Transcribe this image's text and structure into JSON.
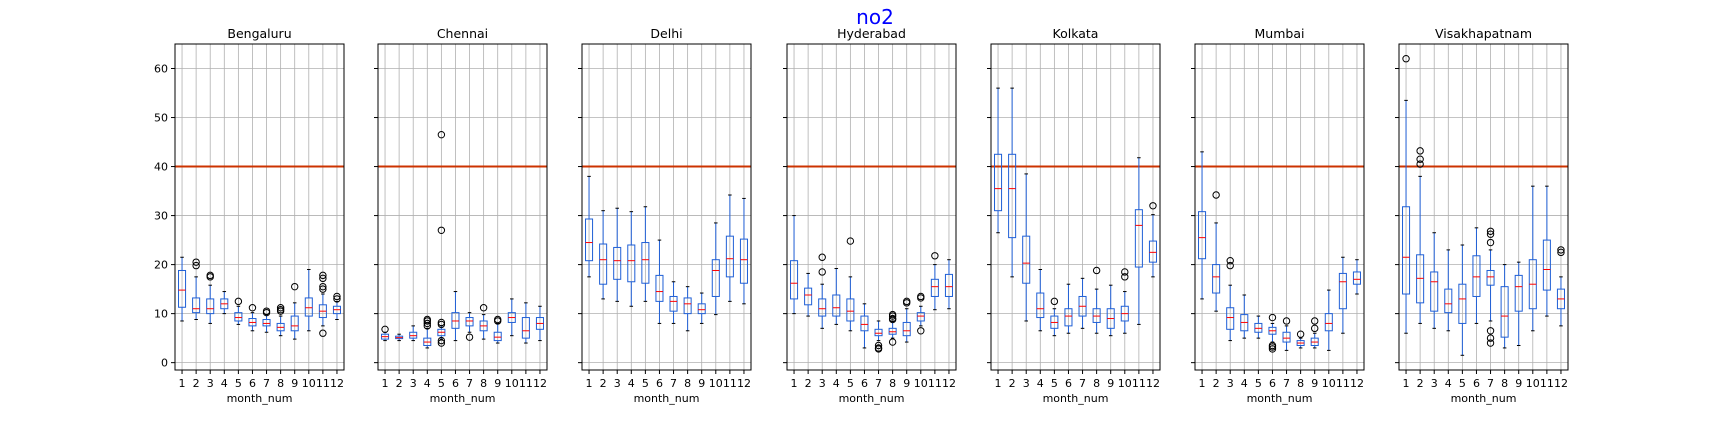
{
  "figure": {
    "title": "no2",
    "title_color": "#0000ff"
  },
  "chart_data": {
    "type": "box",
    "xlabel": "month_num",
    "x_ticks": [
      "1",
      "2",
      "3",
      "4",
      "5",
      "6",
      "7",
      "8",
      "9",
      "10",
      "11",
      "12"
    ],
    "y_ticks": [
      0,
      10,
      20,
      30,
      40,
      50,
      60
    ],
    "ylim": [
      -1.5,
      65
    ],
    "grid": true,
    "reference_line": {
      "y": 40,
      "color": "#cc3300"
    },
    "colors": {
      "box": "#1f5fd6",
      "median": "#ff0000",
      "whisker": "#1f5fd6",
      "flier": "#000000",
      "grid": "#b0b0b0"
    },
    "panels": [
      {
        "title": "Bengaluru",
        "boxes": [
          {
            "m": 1,
            "wl": 8.5,
            "q1": 11.3,
            "med": 14.8,
            "q3": 18.8,
            "wh": 21.5,
            "fl": []
          },
          {
            "m": 2,
            "wl": 8.8,
            "q1": 10.2,
            "med": 11.0,
            "q3": 13.2,
            "wh": 17.5,
            "fl": [
              20.5,
              19.8
            ]
          },
          {
            "m": 3,
            "wl": 8.0,
            "q1": 10.0,
            "med": 11.0,
            "q3": 13.0,
            "wh": 15.8,
            "fl": [
              17.8,
              17.5
            ]
          },
          {
            "m": 4,
            "wl": 10.0,
            "q1": 11.0,
            "med": 12.0,
            "q3": 13.0,
            "wh": 14.5,
            "fl": []
          },
          {
            "m": 5,
            "wl": 7.8,
            "q1": 8.5,
            "med": 9.2,
            "q3": 10.2,
            "wh": 11.5,
            "fl": [
              12.5
            ]
          },
          {
            "m": 6,
            "wl": 6.5,
            "q1": 7.5,
            "med": 8.2,
            "q3": 9.0,
            "wh": 10.2,
            "fl": [
              11.2
            ]
          },
          {
            "m": 7,
            "wl": 6.2,
            "q1": 7.5,
            "med": 8.0,
            "q3": 8.8,
            "wh": 9.8,
            "fl": [
              10.5,
              10.2
            ]
          },
          {
            "m": 8,
            "wl": 5.5,
            "q1": 6.5,
            "med": 7.2,
            "q3": 8.0,
            "wh": 9.5,
            "fl": [
              11.2,
              10.8,
              10.5
            ]
          },
          {
            "m": 9,
            "wl": 4.8,
            "q1": 6.5,
            "med": 7.5,
            "q3": 9.5,
            "wh": 12.2,
            "fl": [
              15.5
            ]
          },
          {
            "m": 10,
            "wl": 6.5,
            "q1": 9.5,
            "med": 11.2,
            "q3": 13.2,
            "wh": 19.0,
            "fl": []
          },
          {
            "m": 11,
            "wl": 7.5,
            "q1": 9.2,
            "med": 10.5,
            "q3": 11.8,
            "wh": 14.0,
            "fl": [
              17.8,
              17.2,
              15.5,
              15.0,
              6.0
            ]
          },
          {
            "m": 12,
            "wl": 8.8,
            "q1": 10.0,
            "med": 10.8,
            "q3": 11.5,
            "wh": 12.5,
            "fl": [
              13.5,
              13.0
            ]
          }
        ]
      },
      {
        "title": "Chennai",
        "boxes": [
          {
            "m": 1,
            "wl": 4.5,
            "q1": 4.8,
            "med": 5.3,
            "q3": 5.8,
            "wh": 6.2,
            "fl": [
              6.8
            ]
          },
          {
            "m": 2,
            "wl": 4.5,
            "q1": 4.9,
            "med": 5.1,
            "q3": 5.4,
            "wh": 5.8,
            "fl": []
          },
          {
            "m": 3,
            "wl": 4.5,
            "q1": 5.0,
            "med": 5.5,
            "q3": 6.2,
            "wh": 7.5,
            "fl": []
          },
          {
            "m": 4,
            "wl": 3.0,
            "q1": 3.5,
            "med": 4.2,
            "q3": 5.0,
            "wh": 7.0,
            "fl": [
              8.8,
              8.5,
              8.0,
              7.5
            ]
          },
          {
            "m": 5,
            "wl": 4.8,
            "q1": 5.5,
            "med": 6.2,
            "q3": 6.8,
            "wh": 7.5,
            "fl": [
              46.5,
              27.0,
              8.2,
              7.8,
              4.5,
              4.0
            ]
          },
          {
            "m": 6,
            "wl": 4.5,
            "q1": 7.0,
            "med": 8.5,
            "q3": 10.2,
            "wh": 14.5,
            "fl": []
          },
          {
            "m": 7,
            "wl": 6.2,
            "q1": 7.5,
            "med": 8.5,
            "q3": 9.2,
            "wh": 10.2,
            "fl": [
              5.2
            ]
          },
          {
            "m": 8,
            "wl": 4.8,
            "q1": 6.5,
            "med": 7.5,
            "q3": 8.5,
            "wh": 9.8,
            "fl": [
              11.2
            ]
          },
          {
            "m": 9,
            "wl": 4.0,
            "q1": 4.5,
            "med": 5.2,
            "q3": 6.2,
            "wh": 8.0,
            "fl": [
              8.8,
              8.5
            ]
          },
          {
            "m": 10,
            "wl": 5.5,
            "q1": 8.2,
            "med": 9.2,
            "q3": 10.2,
            "wh": 13.0,
            "fl": []
          },
          {
            "m": 11,
            "wl": 4.0,
            "q1": 5.0,
            "med": 6.5,
            "q3": 9.2,
            "wh": 12.2,
            "fl": []
          },
          {
            "m": 12,
            "wl": 4.5,
            "q1": 6.8,
            "med": 8.0,
            "q3": 9.2,
            "wh": 11.5,
            "fl": []
          }
        ]
      },
      {
        "title": "Delhi",
        "boxes": [
          {
            "m": 1,
            "wl": 17.5,
            "q1": 20.8,
            "med": 24.5,
            "q3": 29.3,
            "wh": 38.0,
            "fl": []
          },
          {
            "m": 2,
            "wl": 13.0,
            "q1": 16.0,
            "med": 21.0,
            "q3": 24.2,
            "wh": 31.0,
            "fl": []
          },
          {
            "m": 3,
            "wl": 12.5,
            "q1": 17.0,
            "med": 20.8,
            "q3": 23.5,
            "wh": 31.5,
            "fl": []
          },
          {
            "m": 4,
            "wl": 11.5,
            "q1": 16.5,
            "med": 20.8,
            "q3": 24.0,
            "wh": 30.8,
            "fl": []
          },
          {
            "m": 5,
            "wl": 12.5,
            "q1": 16.2,
            "med": 21.0,
            "q3": 24.5,
            "wh": 31.8,
            "fl": []
          },
          {
            "m": 6,
            "wl": 8.0,
            "q1": 12.5,
            "med": 14.5,
            "q3": 17.8,
            "wh": 25.0,
            "fl": []
          },
          {
            "m": 7,
            "wl": 8.0,
            "q1": 10.5,
            "med": 12.5,
            "q3": 13.5,
            "wh": 16.5,
            "fl": []
          },
          {
            "m": 8,
            "wl": 6.5,
            "q1": 10.0,
            "med": 12.0,
            "q3": 13.2,
            "wh": 15.5,
            "fl": []
          },
          {
            "m": 9,
            "wl": 8.0,
            "q1": 10.0,
            "med": 10.8,
            "q3": 12.0,
            "wh": 14.2,
            "fl": []
          },
          {
            "m": 10,
            "wl": 9.8,
            "q1": 13.5,
            "med": 18.8,
            "q3": 21.0,
            "wh": 28.5,
            "fl": []
          },
          {
            "m": 11,
            "wl": 12.5,
            "q1": 17.5,
            "med": 21.2,
            "q3": 25.8,
            "wh": 34.2,
            "fl": []
          },
          {
            "m": 12,
            "wl": 12.0,
            "q1": 16.2,
            "med": 21.0,
            "q3": 25.2,
            "wh": 33.5,
            "fl": []
          }
        ]
      },
      {
        "title": "Hyderabad",
        "boxes": [
          {
            "m": 1,
            "wl": 10.0,
            "q1": 13.0,
            "med": 16.2,
            "q3": 20.8,
            "wh": 30.0,
            "fl": []
          },
          {
            "m": 2,
            "wl": 9.5,
            "q1": 11.8,
            "med": 13.8,
            "q3": 15.2,
            "wh": 18.2,
            "fl": []
          },
          {
            "m": 3,
            "wl": 7.0,
            "q1": 9.5,
            "med": 11.0,
            "q3": 13.0,
            "wh": 16.0,
            "fl": [
              21.5,
              18.5
            ]
          },
          {
            "m": 4,
            "wl": 7.8,
            "q1": 9.5,
            "med": 11.2,
            "q3": 13.8,
            "wh": 19.2,
            "fl": []
          },
          {
            "m": 5,
            "wl": 6.5,
            "q1": 8.5,
            "med": 10.5,
            "q3": 13.0,
            "wh": 17.5,
            "fl": [
              24.8
            ]
          },
          {
            "m": 6,
            "wl": 3.0,
            "q1": 6.5,
            "med": 7.8,
            "q3": 9.5,
            "wh": 12.0,
            "fl": []
          },
          {
            "m": 7,
            "wl": 4.5,
            "q1": 5.5,
            "med": 6.0,
            "q3": 6.8,
            "wh": 8.5,
            "fl": [
              3.5,
              3.0,
              2.8
            ]
          },
          {
            "m": 8,
            "wl": 5.0,
            "q1": 5.8,
            "med": 6.3,
            "q3": 7.0,
            "wh": 8.5,
            "fl": [
              9.8,
              9.5,
              9.0,
              8.8,
              4.2
            ]
          },
          {
            "m": 9,
            "wl": 4.2,
            "q1": 5.5,
            "med": 6.5,
            "q3": 8.2,
            "wh": 11.0,
            "fl": [
              12.5,
              12.2
            ]
          },
          {
            "m": 10,
            "wl": 7.5,
            "q1": 8.5,
            "med": 9.5,
            "q3": 10.2,
            "wh": 11.5,
            "fl": [
              13.5,
              13.2,
              6.5
            ]
          },
          {
            "m": 11,
            "wl": 10.8,
            "q1": 13.5,
            "med": 15.5,
            "q3": 17.0,
            "wh": 20.0,
            "fl": [
              21.8
            ]
          },
          {
            "m": 12,
            "wl": 11.0,
            "q1": 13.5,
            "med": 15.5,
            "q3": 18.0,
            "wh": 21.0,
            "fl": []
          }
        ]
      },
      {
        "title": "Kolkata",
        "boxes": [
          {
            "m": 1,
            "wl": 26.5,
            "q1": 31.0,
            "med": 35.5,
            "q3": 42.5,
            "wh": 56.0,
            "fl": []
          },
          {
            "m": 2,
            "wl": 17.5,
            "q1": 25.5,
            "med": 35.5,
            "q3": 42.5,
            "wh": 56.0,
            "fl": []
          },
          {
            "m": 3,
            "wl": 8.5,
            "q1": 16.2,
            "med": 20.3,
            "q3": 25.8,
            "wh": 38.5,
            "fl": []
          },
          {
            "m": 4,
            "wl": 6.5,
            "q1": 9.2,
            "med": 11.0,
            "q3": 14.2,
            "wh": 19.0,
            "fl": []
          },
          {
            "m": 5,
            "wl": 5.5,
            "q1": 7.0,
            "med": 8.2,
            "q3": 9.5,
            "wh": 11.0,
            "fl": [
              12.5
            ]
          },
          {
            "m": 6,
            "wl": 6.0,
            "q1": 7.5,
            "med": 9.5,
            "q3": 11.0,
            "wh": 16.0,
            "fl": []
          },
          {
            "m": 7,
            "wl": 7.0,
            "q1": 9.5,
            "med": 11.5,
            "q3": 13.5,
            "wh": 17.2,
            "fl": []
          },
          {
            "m": 8,
            "wl": 6.0,
            "q1": 8.2,
            "med": 9.5,
            "q3": 11.0,
            "wh": 15.0,
            "fl": [
              18.8
            ]
          },
          {
            "m": 9,
            "wl": 5.5,
            "q1": 7.0,
            "med": 9.0,
            "q3": 11.0,
            "wh": 15.8,
            "fl": []
          },
          {
            "m": 10,
            "wl": 6.0,
            "q1": 8.5,
            "med": 10.0,
            "q3": 11.5,
            "wh": 14.5,
            "fl": [
              18.5,
              17.5
            ]
          },
          {
            "m": 11,
            "wl": 7.8,
            "q1": 19.5,
            "med": 28.0,
            "q3": 31.2,
            "wh": 41.8,
            "fl": []
          },
          {
            "m": 12,
            "wl": 17.5,
            "q1": 20.5,
            "med": 22.5,
            "q3": 24.8,
            "wh": 30.2,
            "fl": [
              32.0
            ]
          }
        ]
      },
      {
        "title": "Mumbai",
        "boxes": [
          {
            "m": 1,
            "wl": 13.0,
            "q1": 21.2,
            "med": 25.5,
            "q3": 30.8,
            "wh": 43.0,
            "fl": []
          },
          {
            "m": 2,
            "wl": 10.5,
            "q1": 14.2,
            "med": 17.5,
            "q3": 20.0,
            "wh": 28.5,
            "fl": [
              34.2
            ]
          },
          {
            "m": 3,
            "wl": 4.5,
            "q1": 6.8,
            "med": 9.2,
            "q3": 11.2,
            "wh": 15.8,
            "fl": [
              20.8,
              19.8
            ]
          },
          {
            "m": 4,
            "wl": 5.0,
            "q1": 6.5,
            "med": 8.2,
            "q3": 9.8,
            "wh": 13.8,
            "fl": []
          },
          {
            "m": 5,
            "wl": 5.0,
            "q1": 6.2,
            "med": 7.0,
            "q3": 8.0,
            "wh": 9.5,
            "fl": []
          },
          {
            "m": 6,
            "wl": 4.2,
            "q1": 5.8,
            "med": 6.5,
            "q3": 7.2,
            "wh": 8.0,
            "fl": [
              9.2,
              3.5,
              3.2,
              2.8
            ]
          },
          {
            "m": 7,
            "wl": 2.5,
            "q1": 4.2,
            "med": 5.0,
            "q3": 6.2,
            "wh": 7.5,
            "fl": [
              8.5
            ]
          },
          {
            "m": 8,
            "wl": 3.0,
            "q1": 3.5,
            "med": 4.0,
            "q3": 4.5,
            "wh": 5.0,
            "fl": [
              5.8
            ]
          },
          {
            "m": 9,
            "wl": 3.0,
            "q1": 3.5,
            "med": 4.2,
            "q3": 5.0,
            "wh": 6.0,
            "fl": [
              8.5,
              7.0
            ]
          },
          {
            "m": 10,
            "wl": 2.5,
            "q1": 6.5,
            "med": 8.0,
            "q3": 10.0,
            "wh": 14.8,
            "fl": []
          },
          {
            "m": 11,
            "wl": 6.0,
            "q1": 11.0,
            "med": 16.5,
            "q3": 18.2,
            "wh": 21.5,
            "fl": []
          },
          {
            "m": 12,
            "wl": 14.0,
            "q1": 16.0,
            "med": 17.0,
            "q3": 18.5,
            "wh": 21.0,
            "fl": []
          }
        ]
      },
      {
        "title": "Visakhapatnam",
        "boxes": [
          {
            "m": 1,
            "wl": 6.0,
            "q1": 14.0,
            "med": 21.5,
            "q3": 31.8,
            "wh": 53.5,
            "fl": [
              62.0
            ]
          },
          {
            "m": 2,
            "wl": 8.0,
            "q1": 12.2,
            "med": 17.2,
            "q3": 22.0,
            "wh": 38.0,
            "fl": [
              43.2,
              41.5,
              40.5
            ]
          },
          {
            "m": 3,
            "wl": 7.0,
            "q1": 10.5,
            "med": 16.5,
            "q3": 18.5,
            "wh": 26.5,
            "fl": []
          },
          {
            "m": 4,
            "wl": 6.5,
            "q1": 10.2,
            "med": 12.0,
            "q3": 15.0,
            "wh": 23.0,
            "fl": []
          },
          {
            "m": 5,
            "wl": 1.5,
            "q1": 8.0,
            "med": 13.0,
            "q3": 16.0,
            "wh": 24.0,
            "fl": []
          },
          {
            "m": 6,
            "wl": 8.0,
            "q1": 13.5,
            "med": 17.5,
            "q3": 21.8,
            "wh": 27.5,
            "fl": []
          },
          {
            "m": 7,
            "wl": 8.5,
            "q1": 15.8,
            "med": 17.5,
            "q3": 18.8,
            "wh": 23.0,
            "fl": [
              26.8,
              26.2,
              24.5,
              6.5,
              5.0,
              4.0
            ]
          },
          {
            "m": 8,
            "wl": 3.0,
            "q1": 5.2,
            "med": 9.5,
            "q3": 15.5,
            "wh": 20.0,
            "fl": []
          },
          {
            "m": 9,
            "wl": 3.5,
            "q1": 10.5,
            "med": 15.5,
            "q3": 17.8,
            "wh": 20.5,
            "fl": []
          },
          {
            "m": 10,
            "wl": 6.5,
            "q1": 11.0,
            "med": 16.0,
            "q3": 21.0,
            "wh": 36.0,
            "fl": []
          },
          {
            "m": 11,
            "wl": 9.5,
            "q1": 14.8,
            "med": 19.0,
            "q3": 25.0,
            "wh": 36.0,
            "fl": []
          },
          {
            "m": 12,
            "wl": 7.5,
            "q1": 11.0,
            "med": 13.0,
            "q3": 15.0,
            "wh": 17.5,
            "fl": [
              23.0,
              22.5
            ]
          }
        ]
      }
    ]
  }
}
